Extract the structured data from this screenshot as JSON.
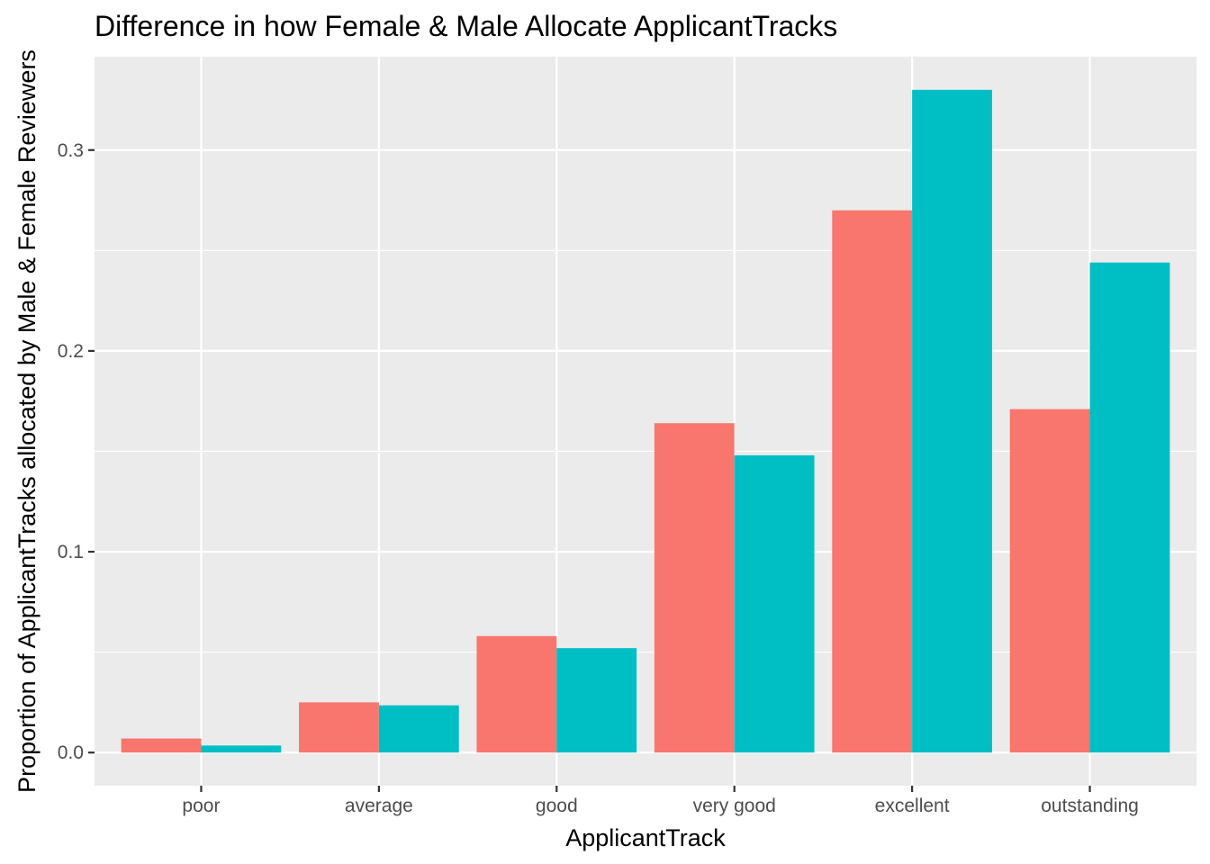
{
  "chart_data": {
    "type": "bar",
    "title": "Difference in how Female & Male Allocate ApplicantTracks",
    "xlabel": "ApplicantTrack",
    "ylabel": "Proportion of ApplicantTracks allocated by Male & Female Reviewers",
    "categories": [
      "poor",
      "average",
      "good",
      "very good",
      "excellent",
      "outstanding"
    ],
    "series": [
      {
        "color": "#F8766D",
        "values": [
          0.007,
          0.025,
          0.058,
          0.164,
          0.27,
          0.171
        ]
      },
      {
        "color": "#00BFC4",
        "values": [
          0.0035,
          0.0235,
          0.052,
          0.148,
          0.33,
          0.244
        ]
      }
    ],
    "yticks": [
      0.0,
      0.1,
      0.2,
      0.3
    ],
    "ytick_labels": [
      "0.0",
      "0.1",
      "0.2",
      "0.3"
    ],
    "ylim": [
      -0.0165,
      0.3465
    ],
    "grid": true,
    "legend": "none",
    "panel_background": "#EBEBEB"
  }
}
